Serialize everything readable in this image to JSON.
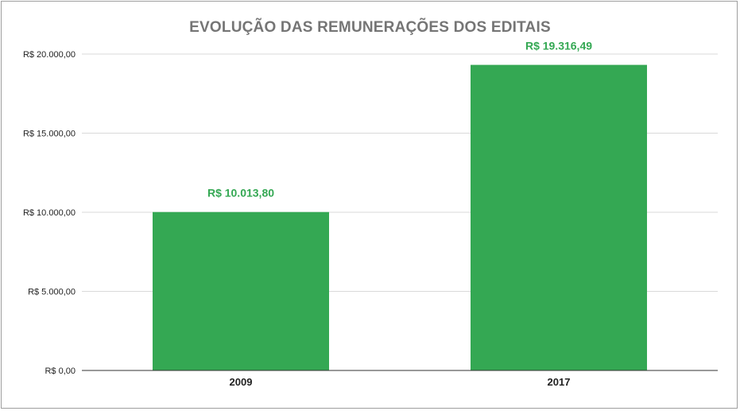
{
  "chart_data": {
    "type": "bar",
    "title": "EVOLUÇÃO DAS REMUNERAÇÕES DOS EDITAIS",
    "categories": [
      "2009",
      "2017"
    ],
    "values": [
      10013.8,
      19316.49
    ],
    "data_labels": [
      "R$ 10.013,80",
      "R$ 19.316,49"
    ],
    "ylim": [
      0,
      20000
    ],
    "y_ticks": [
      {
        "value": 0,
        "label": "R$ 0,00"
      },
      {
        "value": 5000,
        "label": "R$ 5.000,00"
      },
      {
        "value": 10000,
        "label": "R$ 10.000,00"
      },
      {
        "value": 15000,
        "label": "R$ 15.000,00"
      },
      {
        "value": 20000,
        "label": "R$ 20.000,00"
      }
    ],
    "grid": true,
    "legend": "none",
    "bar_color": "#34a853",
    "label_color": "#34a853"
  }
}
